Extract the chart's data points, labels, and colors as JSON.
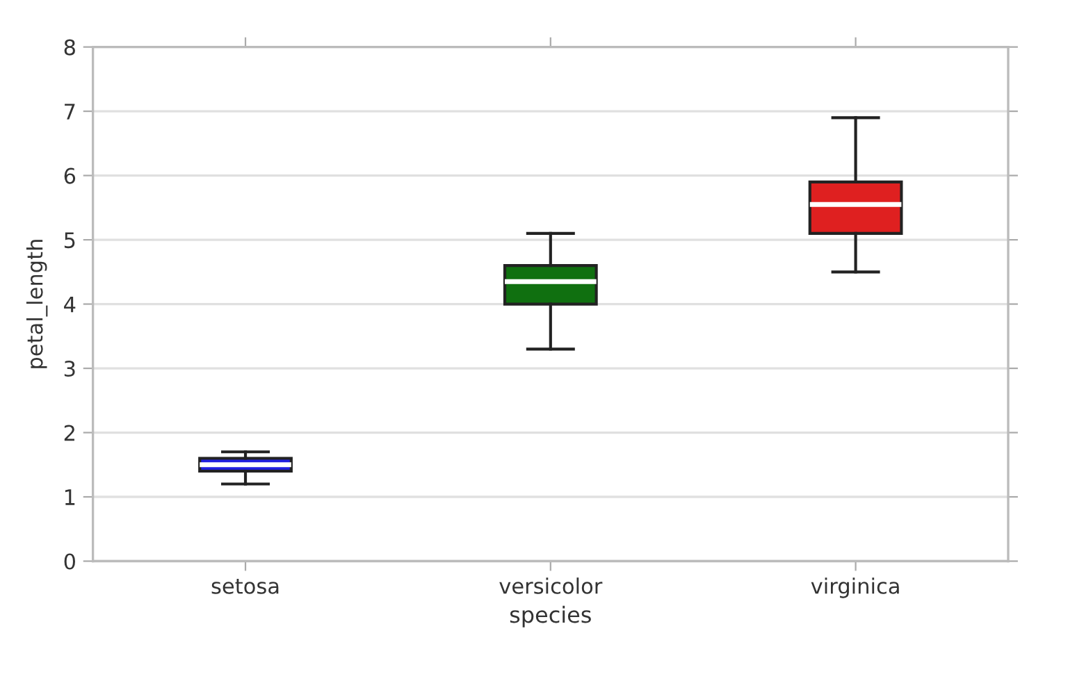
{
  "chart_data": {
    "type": "box",
    "xlabel": "species",
    "ylabel": "petal_length",
    "categories": [
      "setosa",
      "versicolor",
      "virginica"
    ],
    "colors": [
      "#2020df",
      "#107010",
      "#df2020"
    ],
    "boxes": [
      {
        "low": 1.2,
        "q1": 1.4,
        "median": 1.5,
        "q3": 1.6,
        "high": 1.7
      },
      {
        "low": 3.3,
        "q1": 4.0,
        "median": 4.35,
        "q3": 4.6,
        "high": 5.1
      },
      {
        "low": 4.5,
        "q1": 5.1,
        "median": 5.55,
        "q3": 5.9,
        "high": 6.9
      }
    ],
    "ylim": [
      0,
      8
    ],
    "yticks": [
      0,
      1,
      2,
      3,
      4,
      5,
      6,
      7,
      8
    ],
    "grid": "y"
  }
}
